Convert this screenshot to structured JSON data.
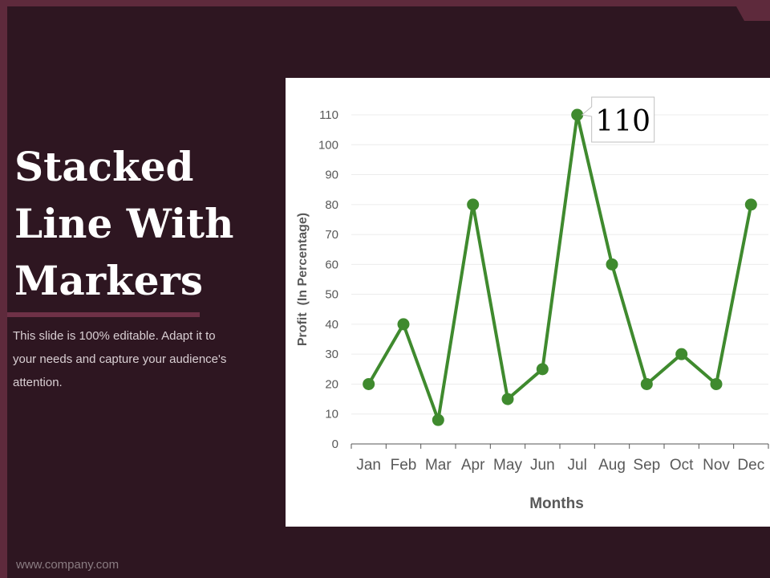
{
  "slide": {
    "title_lines": [
      "Stacked",
      "Line With",
      "Markers"
    ],
    "subtitle": "This slide is 100% editable. Adapt it to your needs and capture your audience's attention.",
    "footer": "www.company.com"
  },
  "colors": {
    "background": "#2e1621",
    "frame": "#5e2a3c",
    "series": "#3f8a2e"
  },
  "chart_data": {
    "type": "line",
    "categories": [
      "Jan",
      "Feb",
      "Mar",
      "Apr",
      "May",
      "Jun",
      "Jul",
      "Aug",
      "Sep",
      "Oct",
      "Nov",
      "Dec"
    ],
    "series": [
      {
        "values": [
          20,
          40,
          8,
          80,
          15,
          25,
          110,
          60,
          20,
          30,
          20,
          80
        ]
      }
    ],
    "ylim": [
      0,
      110
    ],
    "yticks": [
      "0",
      "10",
      "20",
      "30",
      "40",
      "50",
      "60",
      "70",
      "80",
      "90",
      "100",
      "110"
    ],
    "xlabel": "Months",
    "ylabel": "Profit  (In Percentage)",
    "grid": true,
    "annotation": {
      "category": "Jul",
      "text": "110"
    }
  }
}
